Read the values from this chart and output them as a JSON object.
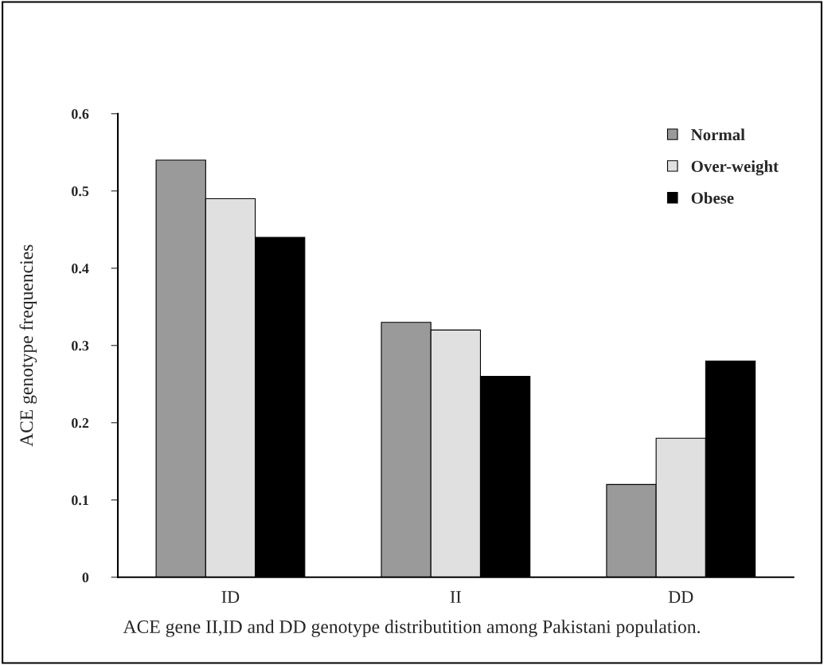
{
  "chart_data": {
    "type": "bar",
    "categories": [
      "ID",
      "II",
      "DD"
    ],
    "series": [
      {
        "name": "Normal",
        "color": "#9a9a9a",
        "values": [
          0.54,
          0.33,
          0.12
        ]
      },
      {
        "name": "Over-weight",
        "color": "#e0e0e0",
        "values": [
          0.49,
          0.32,
          0.18
        ]
      },
      {
        "name": "Obese",
        "color": "#000000",
        "values": [
          0.44,
          0.26,
          0.28
        ]
      }
    ],
    "ylabel": "ACE genotype frequencies",
    "ylim": [
      0,
      0.6
    ],
    "yticks": [
      0,
      0.1,
      0.2,
      0.3,
      0.4,
      0.5,
      0.6
    ],
    "grid": false,
    "legend": "top right",
    "annotations": [
      "ACE gene II,ID and DD genotype distributition among Pakistani population."
    ]
  }
}
